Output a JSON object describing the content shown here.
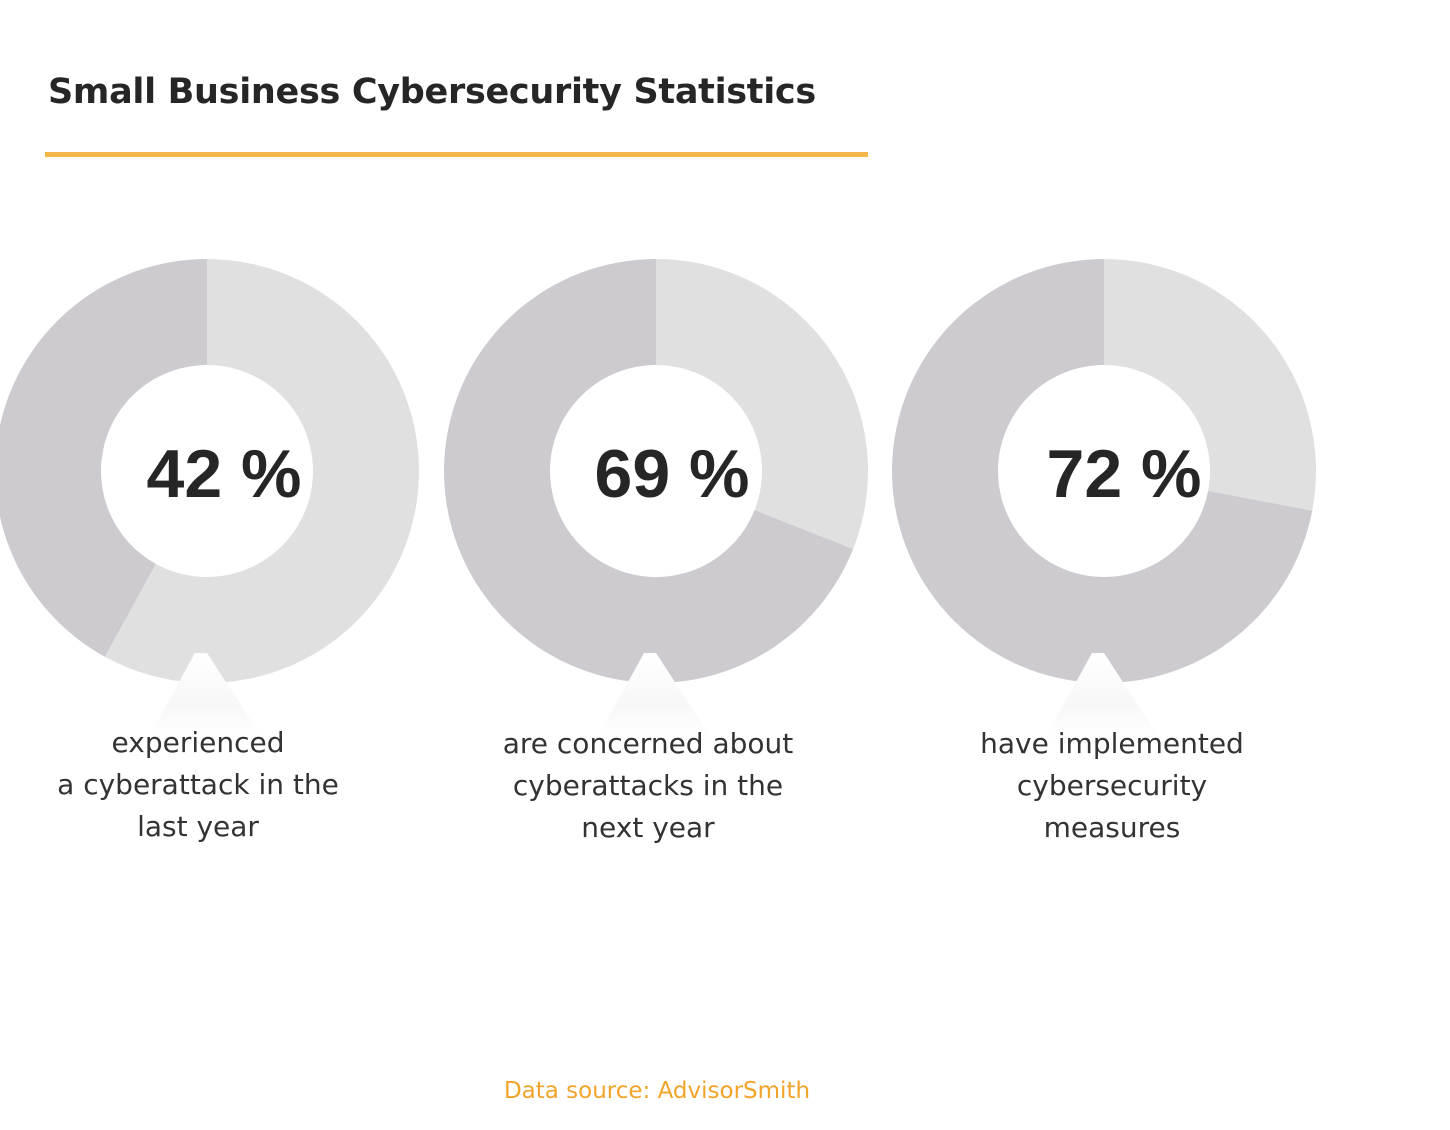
{
  "title": "Small Business Cybersecurity Statistics",
  "source": "Data source: AdvisorSmith",
  "colors": {
    "accent": "#f6b749",
    "value_segment": "#cdcbd0",
    "remainder_segment": "#e0e0e0",
    "source_text": "#f2a42a"
  },
  "chart_data": [
    {
      "type": "pie",
      "value": 42,
      "label": "42 %",
      "caption_lines": [
        "experienced",
        "a cyberattack in the",
        "last year"
      ]
    },
    {
      "type": "pie",
      "value": 69,
      "label": "69 %",
      "caption_lines": [
        "are concerned about",
        "cyberattacks in the",
        "next year"
      ]
    },
    {
      "type": "pie",
      "value": 72,
      "label": "72 %",
      "caption_lines": [
        "have implemented",
        "cybersecurity",
        "measures"
      ]
    }
  ]
}
